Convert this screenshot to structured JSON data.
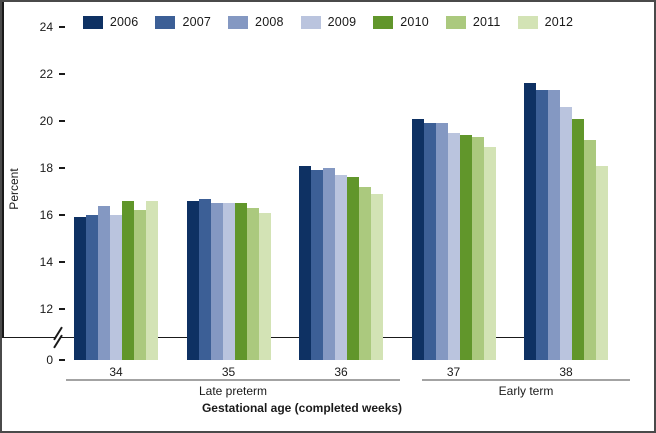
{
  "chart_data": {
    "type": "bar",
    "title": "",
    "ylabel": "Percent",
    "xlabel": "Gestational age (completed weeks)",
    "categories": [
      "34",
      "35",
      "36",
      "37",
      "38"
    ],
    "sections": [
      {
        "label": "Late preterm",
        "categories": [
          "34",
          "35",
          "36"
        ]
      },
      {
        "label": "Early term",
        "categories": [
          "37",
          "38"
        ]
      }
    ],
    "y_axis": {
      "label": "Percent",
      "ticks": [
        24,
        22,
        20,
        18,
        16,
        14,
        12,
        0
      ],
      "ylim_visible": [
        12,
        24
      ],
      "axis_break_between": [
        0,
        12
      ],
      "grid": false
    },
    "legend_position": "top",
    "series": [
      {
        "name": "2006",
        "color": "#0e3163",
        "values": [
          15.9,
          16.6,
          18.1,
          20.1,
          21.6
        ]
      },
      {
        "name": "2007",
        "color": "#3c5f96",
        "values": [
          16.0,
          16.7,
          17.9,
          19.9,
          21.3
        ]
      },
      {
        "name": "2008",
        "color": "#8498c2",
        "values": [
          16.4,
          16.5,
          18.0,
          19.9,
          21.3
        ]
      },
      {
        "name": "2009",
        "color": "#bac4de",
        "values": [
          16.0,
          16.5,
          17.7,
          19.5,
          20.6
        ]
      },
      {
        "name": "2010",
        "color": "#61962b",
        "values": [
          16.6,
          16.5,
          17.6,
          19.4,
          20.1
        ]
      },
      {
        "name": "2011",
        "color": "#abc97e",
        "values": [
          16.2,
          16.3,
          17.2,
          19.3,
          19.2
        ]
      },
      {
        "name": "2012",
        "color": "#d3e3b5",
        "values": [
          16.6,
          16.1,
          16.9,
          18.9,
          18.1
        ]
      }
    ]
  }
}
